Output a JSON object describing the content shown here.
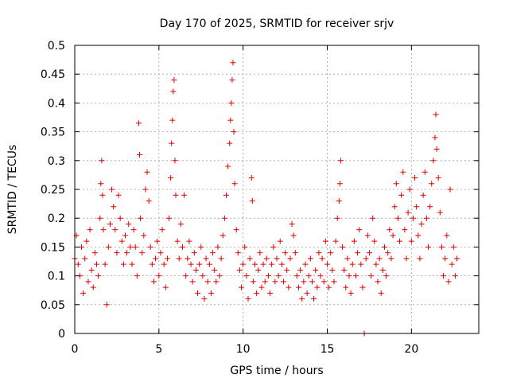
{
  "chart_data": {
    "type": "scatter",
    "title": "Day 170 of 2025, SRMTID for receiver srjv",
    "xlabel": "GPS time / hours",
    "ylabel": "SRMTID / TECUs",
    "xlim": [
      0,
      24
    ],
    "ylim": [
      0,
      0.5
    ],
    "xticks": [
      "0",
      "5",
      "10",
      "15",
      "20"
    ],
    "yticks": [
      "0",
      "0.05",
      "0.1",
      "0.15",
      "0.2",
      "0.25",
      "0.3",
      "0.35",
      "0.4",
      "0.45",
      "0.5"
    ],
    "grid": true,
    "marker": "+",
    "color": "#e00000",
    "series": [
      {
        "points": [
          [
            0.0,
            0.13
          ],
          [
            0.1,
            0.17
          ],
          [
            0.2,
            0.12
          ],
          [
            0.3,
            0.1
          ],
          [
            0.4,
            0.15
          ],
          [
            0.5,
            0.07
          ],
          [
            0.6,
            0.13
          ],
          [
            0.7,
            0.16
          ],
          [
            0.8,
            0.09
          ],
          [
            0.9,
            0.18
          ],
          [
            1.0,
            0.11
          ],
          [
            1.1,
            0.08
          ],
          [
            1.2,
            0.14
          ],
          [
            1.3,
            0.12
          ],
          [
            1.4,
            0.1
          ],
          [
            1.5,
            0.2
          ],
          [
            1.55,
            0.26
          ],
          [
            1.6,
            0.3
          ],
          [
            1.65,
            0.24
          ],
          [
            1.7,
            0.18
          ],
          [
            1.8,
            0.12
          ],
          [
            1.9,
            0.05
          ],
          [
            2.0,
            0.15
          ],
          [
            2.1,
            0.19
          ],
          [
            2.2,
            0.25
          ],
          [
            2.3,
            0.22
          ],
          [
            2.4,
            0.18
          ],
          [
            2.5,
            0.14
          ],
          [
            2.6,
            0.24
          ],
          [
            2.7,
            0.2
          ],
          [
            2.8,
            0.16
          ],
          [
            2.9,
            0.12
          ],
          [
            3.0,
            0.17
          ],
          [
            3.1,
            0.14
          ],
          [
            3.2,
            0.19
          ],
          [
            3.3,
            0.15
          ],
          [
            3.4,
            0.12
          ],
          [
            3.5,
            0.18
          ],
          [
            3.6,
            0.15
          ],
          [
            3.7,
            0.1
          ],
          [
            3.8,
            0.365
          ],
          [
            3.85,
            0.31
          ],
          [
            3.9,
            0.2
          ],
          [
            4.0,
            0.14
          ],
          [
            4.1,
            0.17
          ],
          [
            4.2,
            0.25
          ],
          [
            4.3,
            0.28
          ],
          [
            4.4,
            0.23
          ],
          [
            4.5,
            0.15
          ],
          [
            4.6,
            0.12
          ],
          [
            4.7,
            0.09
          ],
          [
            4.8,
            0.13
          ],
          [
            4.9,
            0.16
          ],
          [
            5.0,
            0.1
          ],
          [
            5.1,
            0.14
          ],
          [
            5.2,
            0.18
          ],
          [
            5.3,
            0.12
          ],
          [
            5.4,
            0.08
          ],
          [
            5.5,
            0.13
          ],
          [
            5.6,
            0.2
          ],
          [
            5.7,
            0.27
          ],
          [
            5.75,
            0.33
          ],
          [
            5.8,
            0.37
          ],
          [
            5.85,
            0.42
          ],
          [
            5.9,
            0.44
          ],
          [
            5.95,
            0.3
          ],
          [
            6.0,
            0.24
          ],
          [
            6.1,
            0.16
          ],
          [
            6.2,
            0.13
          ],
          [
            6.3,
            0.19
          ],
          [
            6.4,
            0.15
          ],
          [
            6.5,
            0.24
          ],
          [
            6.6,
            0.1
          ],
          [
            6.7,
            0.13
          ],
          [
            6.8,
            0.16
          ],
          [
            6.9,
            0.12
          ],
          [
            7.0,
            0.09
          ],
          [
            7.1,
            0.14
          ],
          [
            7.2,
            0.11
          ],
          [
            7.3,
            0.07
          ],
          [
            7.4,
            0.12
          ],
          [
            7.5,
            0.15
          ],
          [
            7.6,
            0.1
          ],
          [
            7.7,
            0.06
          ],
          [
            7.8,
            0.13
          ],
          [
            7.9,
            0.09
          ],
          [
            8.0,
            0.12
          ],
          [
            8.1,
            0.07
          ],
          [
            8.2,
            0.14
          ],
          [
            8.3,
            0.11
          ],
          [
            8.4,
            0.09
          ],
          [
            8.5,
            0.15
          ],
          [
            8.6,
            0.1
          ],
          [
            8.7,
            0.13
          ],
          [
            8.8,
            0.17
          ],
          [
            8.9,
            0.2
          ],
          [
            9.0,
            0.24
          ],
          [
            9.1,
            0.29
          ],
          [
            9.2,
            0.33
          ],
          [
            9.25,
            0.37
          ],
          [
            9.3,
            0.4
          ],
          [
            9.35,
            0.44
          ],
          [
            9.4,
            0.47
          ],
          [
            9.45,
            0.35
          ],
          [
            9.5,
            0.26
          ],
          [
            9.6,
            0.18
          ],
          [
            9.7,
            0.14
          ],
          [
            9.8,
            0.11
          ],
          [
            9.9,
            0.08
          ],
          [
            10.0,
            0.12
          ],
          [
            10.1,
            0.15
          ],
          [
            10.2,
            0.1
          ],
          [
            10.3,
            0.06
          ],
          [
            10.4,
            0.13
          ],
          [
            10.5,
            0.27
          ],
          [
            10.55,
            0.23
          ],
          [
            10.6,
            0.09
          ],
          [
            10.7,
            0.12
          ],
          [
            10.8,
            0.07
          ],
          [
            10.9,
            0.11
          ],
          [
            11.0,
            0.14
          ],
          [
            11.1,
            0.08
          ],
          [
            11.2,
            0.12
          ],
          [
            11.3,
            0.09
          ],
          [
            11.4,
            0.13
          ],
          [
            11.5,
            0.1
          ],
          [
            11.6,
            0.07
          ],
          [
            11.7,
            0.12
          ],
          [
            11.8,
            0.15
          ],
          [
            11.9,
            0.09
          ],
          [
            12.0,
            0.13
          ],
          [
            12.1,
            0.1
          ],
          [
            12.2,
            0.16
          ],
          [
            12.3,
            0.12
          ],
          [
            12.4,
            0.09
          ],
          [
            12.5,
            0.14
          ],
          [
            12.6,
            0.11
          ],
          [
            12.7,
            0.08
          ],
          [
            12.8,
            0.13
          ],
          [
            12.9,
            0.19
          ],
          [
            13.0,
            0.17
          ],
          [
            13.1,
            0.14
          ],
          [
            13.2,
            0.1
          ],
          [
            13.3,
            0.08
          ],
          [
            13.4,
            0.11
          ],
          [
            13.5,
            0.06
          ],
          [
            13.6,
            0.09
          ],
          [
            13.7,
            0.12
          ],
          [
            13.8,
            0.07
          ],
          [
            13.9,
            0.1
          ],
          [
            14.0,
            0.13
          ],
          [
            14.1,
            0.09
          ],
          [
            14.2,
            0.06
          ],
          [
            14.3,
            0.11
          ],
          [
            14.4,
            0.08
          ],
          [
            14.5,
            0.14
          ],
          [
            14.6,
            0.1
          ],
          [
            14.7,
            0.13
          ],
          [
            14.8,
            0.09
          ],
          [
            14.9,
            0.16
          ],
          [
            15.0,
            0.12
          ],
          [
            15.1,
            0.08
          ],
          [
            15.2,
            0.14
          ],
          [
            15.3,
            0.11
          ],
          [
            15.4,
            0.09
          ],
          [
            15.5,
            0.16
          ],
          [
            15.6,
            0.2
          ],
          [
            15.7,
            0.23
          ],
          [
            15.75,
            0.26
          ],
          [
            15.8,
            0.3
          ],
          [
            15.9,
            0.15
          ],
          [
            16.0,
            0.11
          ],
          [
            16.1,
            0.08
          ],
          [
            16.2,
            0.13
          ],
          [
            16.3,
            0.1
          ],
          [
            16.4,
            0.07
          ],
          [
            16.5,
            0.12
          ],
          [
            16.6,
            0.16
          ],
          [
            16.7,
            0.1
          ],
          [
            16.8,
            0.14
          ],
          [
            16.9,
            0.18
          ],
          [
            17.0,
            0.12
          ],
          [
            17.1,
            0.08
          ],
          [
            17.2,
            0.0
          ],
          [
            17.3,
            0.13
          ],
          [
            17.4,
            0.17
          ],
          [
            17.5,
            0.14
          ],
          [
            17.6,
            0.1
          ],
          [
            17.7,
            0.2
          ],
          [
            17.8,
            0.16
          ],
          [
            17.9,
            0.12
          ],
          [
            18.0,
            0.09
          ],
          [
            18.1,
            0.13
          ],
          [
            18.2,
            0.07
          ],
          [
            18.3,
            0.11
          ],
          [
            18.4,
            0.15
          ],
          [
            18.5,
            0.1
          ],
          [
            18.6,
            0.14
          ],
          [
            18.7,
            0.18
          ],
          [
            18.8,
            0.13
          ],
          [
            18.9,
            0.17
          ],
          [
            19.0,
            0.22
          ],
          [
            19.1,
            0.26
          ],
          [
            19.2,
            0.2
          ],
          [
            19.3,
            0.16
          ],
          [
            19.4,
            0.24
          ],
          [
            19.5,
            0.28
          ],
          [
            19.6,
            0.18
          ],
          [
            19.7,
            0.13
          ],
          [
            19.8,
            0.21
          ],
          [
            19.9,
            0.25
          ],
          [
            20.0,
            0.16
          ],
          [
            20.1,
            0.2
          ],
          [
            20.2,
            0.27
          ],
          [
            20.3,
            0.22
          ],
          [
            20.4,
            0.17
          ],
          [
            20.5,
            0.13
          ],
          [
            20.6,
            0.19
          ],
          [
            20.7,
            0.24
          ],
          [
            20.8,
            0.28
          ],
          [
            20.9,
            0.2
          ],
          [
            21.0,
            0.15
          ],
          [
            21.1,
            0.22
          ],
          [
            21.2,
            0.26
          ],
          [
            21.3,
            0.3
          ],
          [
            21.4,
            0.34
          ],
          [
            21.45,
            0.38
          ],
          [
            21.5,
            0.32
          ],
          [
            21.6,
            0.27
          ],
          [
            21.7,
            0.21
          ],
          [
            21.8,
            0.15
          ],
          [
            21.9,
            0.1
          ],
          [
            22.0,
            0.13
          ],
          [
            22.1,
            0.17
          ],
          [
            22.2,
            0.09
          ],
          [
            22.3,
            0.25
          ],
          [
            22.4,
            0.12
          ],
          [
            22.5,
            0.15
          ],
          [
            22.6,
            0.1
          ],
          [
            22.7,
            0.13
          ]
        ]
      }
    ]
  }
}
